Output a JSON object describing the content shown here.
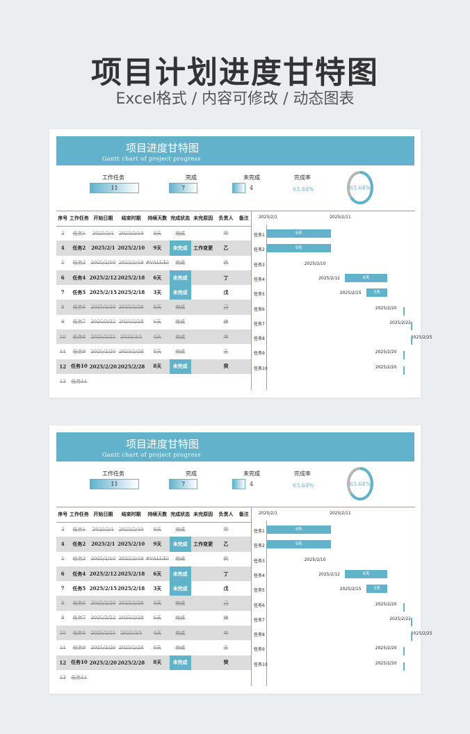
{
  "page": {
    "title": "项目计划进度甘特图",
    "subtitle": "Excel格式 / 内容可修改 / 动态图表"
  },
  "sheet": {
    "title": "项目进度甘特图",
    "subtitle": "Gantt chart of project progress",
    "kpis": [
      {
        "label": "工作任务",
        "value": "11"
      },
      {
        "label": "完成",
        "value": "7"
      },
      {
        "label": "未完成",
        "value": "4"
      }
    ],
    "rate": {
      "label": "完成率",
      "value": "63.64%",
      "fraction": 0.6364
    },
    "headers": [
      "序号",
      "工作任务",
      "开始日期",
      "结束时期",
      "持续天数",
      "完成状态",
      "未完原因",
      "负责人",
      "备注"
    ],
    "rows": [
      {
        "no": "3",
        "task": "任务1",
        "start": "2025/2/1",
        "end": "2025/2/10",
        "days": "9天",
        "status": "完成",
        "reason": "",
        "owner": "甲",
        "note": "",
        "done": true
      },
      {
        "no": "4",
        "task": "任务2",
        "start": "2025/2/1",
        "end": "2025/2/10",
        "days": "9天",
        "status": "未完成",
        "reason": "工作变更",
        "owner": "乙",
        "note": "",
        "done": false
      },
      {
        "no": "5",
        "task": "任务3",
        "start": "2025/2/10",
        "end": "2025/2/19",
        "days": "#VALUE!",
        "status": "完成",
        "reason": "",
        "owner": "丙",
        "note": "",
        "done": true
      },
      {
        "no": "6",
        "task": "任务4",
        "start": "2025/2/12",
        "end": "2025/2/18",
        "days": "6天",
        "status": "未完成",
        "reason": "",
        "owner": "丁",
        "note": "",
        "done": false
      },
      {
        "no": "7",
        "task": "任务5",
        "start": "2025/2/15",
        "end": "2025/2/18",
        "days": "3天",
        "status": "未完成",
        "reason": "",
        "owner": "戊",
        "note": "",
        "done": false
      },
      {
        "no": "8",
        "task": "任务6",
        "start": "2025/2/20",
        "end": "2025/2/28",
        "days": "8天",
        "status": "完成",
        "reason": "",
        "owner": "己",
        "note": "",
        "done": true
      },
      {
        "no": "9",
        "task": "任务7",
        "start": "2025/2/22",
        "end": "2025/2/28",
        "days": "6天",
        "status": "完成",
        "reason": "",
        "owner": "庚",
        "note": "",
        "done": true
      },
      {
        "no": "10",
        "task": "任务8",
        "start": "2025/2/25",
        "end": "2025/3/1",
        "days": "4天",
        "status": "完成",
        "reason": "",
        "owner": "辛",
        "note": "",
        "done": true
      },
      {
        "no": "11",
        "task": "任务9",
        "start": "2025/2/20",
        "end": "2025/2/28",
        "days": "8天",
        "status": "完成",
        "reason": "",
        "owner": "壬",
        "note": "",
        "done": true
      },
      {
        "no": "12",
        "task": "任务10",
        "start": "2025/2/20",
        "end": "2025/2/28",
        "days": "8天",
        "status": "未完成",
        "reason": "",
        "owner": "癸",
        "note": "",
        "done": false
      },
      {
        "no": "13",
        "task": "任务11",
        "start": "",
        "end": "",
        "days": "",
        "status": "",
        "reason": "",
        "owner": "",
        "note": "",
        "done": true
      }
    ],
    "gantt": {
      "axis_labels": [
        "2025/2/1",
        "2025/2/11"
      ],
      "items": [
        {
          "task": "任务1",
          "date": "2025/2/1",
          "bar": "9天",
          "show_date": false
        },
        {
          "task": "任务2",
          "date": "2025/2/1",
          "bar": "9天",
          "show_date": false
        },
        {
          "task": "任务3",
          "date": "2025/2/10",
          "bar": "",
          "show_date": true
        },
        {
          "task": "任务4",
          "date": "2025/2/12",
          "bar": "6天",
          "show_date": true
        },
        {
          "task": "任务5",
          "date": "2025/2/15",
          "bar": "3天",
          "show_date": true
        },
        {
          "task": "任务6",
          "date": "2025/2/20",
          "bar": "",
          "show_date": true
        },
        {
          "task": "任务7",
          "date": "2025/2/22",
          "bar": "",
          "show_date": true
        },
        {
          "task": "任务8",
          "date": "2025/2/25",
          "bar": "",
          "show_date": true
        },
        {
          "task": "任务9",
          "date": "2025/2/20",
          "bar": "",
          "show_date": true
        },
        {
          "task": "任务10",
          "date": "2025/2/20",
          "bar": "",
          "show_date": true
        }
      ]
    }
  },
  "colors": {
    "accent": "#62b2cc",
    "row_alt": "#dcdcdc",
    "ring_track": "#b5b5b5"
  }
}
